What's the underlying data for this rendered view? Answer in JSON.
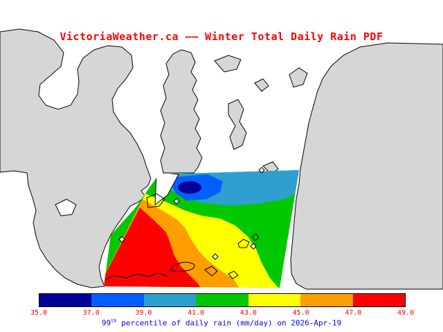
{
  "title": "VictoriaWeather.ca —— Winter Total Daily Rain PDF",
  "caption": {
    "number": "99",
    "ordinal": "th",
    "text": " percentile of daily rain (mm/day) on 2026-Apr-19"
  },
  "colors": {
    "title": "#ff0000",
    "caption": "#0000ff",
    "tick_labels": "#ff0000",
    "land": "#d6d6d6",
    "water": "#ffffff",
    "coastline": "#000000"
  },
  "colorbar": {
    "tick_labels": [
      "35.0",
      "37.0",
      "39.0",
      "41.0",
      "43.0",
      "45.0",
      "47.0",
      "49.0"
    ],
    "units": "mm/day",
    "orientation": "horizontal"
  },
  "chart_data": {
    "type": "filled-contour-map",
    "title": "VictoriaWeather.ca —— Winter Total Daily Rain PDF",
    "variable": "99th percentile of daily rain",
    "units": "mm/day",
    "date": "2026-Apr-19",
    "contour_levels": [
      35,
      37,
      39,
      41,
      43,
      45,
      47,
      49
    ],
    "levels": [
      {
        "from": 35,
        "to": 37,
        "color": "#000096"
      },
      {
        "from": 37,
        "to": 39,
        "color": "#0060ff"
      },
      {
        "from": 39,
        "to": 41,
        "color": "#2f9fd0"
      },
      {
        "from": 41,
        "to": 43,
        "color": "#00c800"
      },
      {
        "from": 43,
        "to": 45,
        "color": "#ffff00"
      },
      {
        "from": 45,
        "to": 47,
        "color": "#ff9e00"
      },
      {
        "from": 47,
        "to": 49,
        "color": "#ff0000"
      }
    ],
    "spatial_pattern": "Minimum (35-37 mm/day, dark blue core) just north of the centre of the shaded overlay; values increase outward through blue, cyan and green; maximum (47-49 mm/day, red) over the southwest of the mapped area.",
    "legend_position": "bottom horizontal colorbar"
  },
  "markers": {
    "shape": "open-diamond",
    "count": 5
  }
}
